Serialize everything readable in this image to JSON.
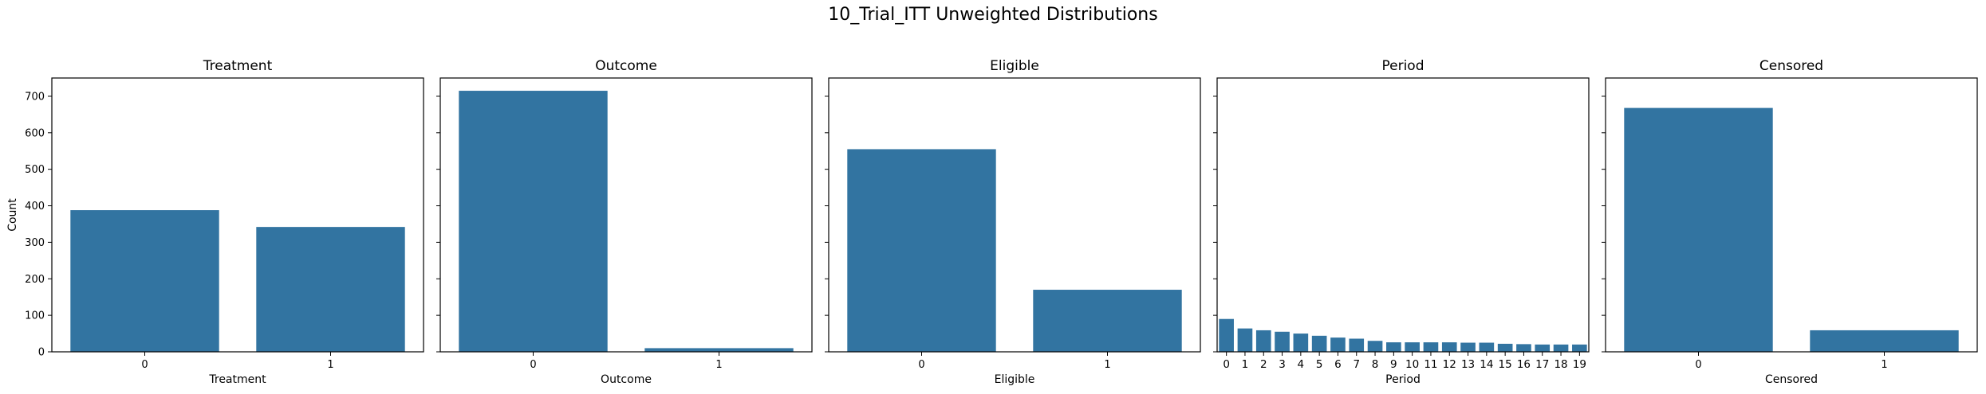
{
  "figure": {
    "title": "10_Trial_ITT Unweighted Distributions",
    "bar_color": "#3274a1"
  },
  "chart_data": [
    {
      "type": "bar",
      "title": "Treatment",
      "xlabel": "Treatment",
      "ylabel": "Count",
      "categories": [
        "0",
        "1"
      ],
      "values": [
        388,
        342
      ],
      "ylim": [
        0,
        750
      ],
      "yticks": [
        0,
        100,
        200,
        300,
        400,
        500,
        600,
        700
      ],
      "grid": false
    },
    {
      "type": "bar",
      "title": "Outcome",
      "xlabel": "Outcome",
      "ylabel": "",
      "categories": [
        "0",
        "1"
      ],
      "values": [
        715,
        10
      ],
      "ylim": [
        0,
        750
      ],
      "yticks": [
        0,
        100,
        200,
        300,
        400,
        500,
        600,
        700
      ],
      "grid": false
    },
    {
      "type": "bar",
      "title": "Eligible",
      "xlabel": "Eligible",
      "ylabel": "",
      "categories": [
        "0",
        "1"
      ],
      "values": [
        555,
        170
      ],
      "ylim": [
        0,
        750
      ],
      "yticks": [
        0,
        100,
        200,
        300,
        400,
        500,
        600,
        700
      ],
      "grid": false
    },
    {
      "type": "bar",
      "title": "Period",
      "xlabel": "Period",
      "ylabel": "",
      "categories": [
        "0",
        "1",
        "2",
        "3",
        "4",
        "5",
        "6",
        "7",
        "8",
        "9",
        "10",
        "11",
        "12",
        "13",
        "14",
        "15",
        "16",
        "17",
        "18",
        "19"
      ],
      "values": [
        90,
        64,
        59,
        55,
        50,
        44,
        39,
        36,
        30,
        26,
        26,
        26,
        26,
        25,
        25,
        22,
        21,
        20,
        20,
        20
      ],
      "ylim": [
        0,
        750
      ],
      "yticks": [
        0,
        100,
        200,
        300,
        400,
        500,
        600,
        700
      ],
      "grid": false
    },
    {
      "type": "bar",
      "title": "Censored",
      "xlabel": "Censored",
      "ylabel": "",
      "categories": [
        "0",
        "1"
      ],
      "values": [
        668,
        59
      ],
      "ylim": [
        0,
        750
      ],
      "yticks": [
        0,
        100,
        200,
        300,
        400,
        500,
        600,
        700
      ],
      "grid": false
    }
  ]
}
